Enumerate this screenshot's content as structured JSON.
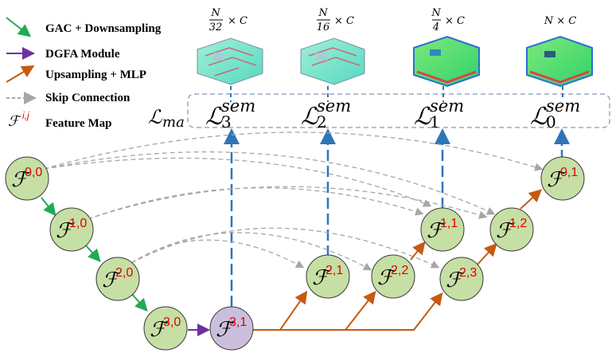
{
  "legend": {
    "items": [
      {
        "label": "GAC + Downsampling",
        "color": "#22aa55",
        "style": "arrow"
      },
      {
        "label": "DGFA Module",
        "color": "#7030a0",
        "style": "arrow"
      },
      {
        "label": "Upsampling + MLP",
        "color": "#c55a11",
        "style": "arrow"
      },
      {
        "label": "Skip Connection",
        "color": "#999999",
        "style": "dashed-arrow"
      },
      {
        "label": "Feature Map",
        "symbol_main": "ℱ",
        "symbol_sup": "i,j"
      }
    ]
  },
  "loss_box": {
    "outer_label_main": "ℒ",
    "outer_label_sub": "ma",
    "losses": [
      {
        "main": "ℒ",
        "sup": "sem",
        "sub": "3"
      },
      {
        "main": "ℒ",
        "sup": "sem",
        "sub": "2"
      },
      {
        "main": "ℒ",
        "sup": "sem",
        "sub": "1"
      },
      {
        "main": "ℒ",
        "sup": "sem",
        "sub": "0"
      }
    ]
  },
  "resolutions": [
    {
      "num": "N",
      "den": "32",
      "suffix": "× C"
    },
    {
      "num": "N",
      "den": "16",
      "suffix": "× C"
    },
    {
      "num": "N",
      "den": "4",
      "suffix": "× C"
    },
    {
      "label": "N × C"
    }
  ],
  "nodes": [
    {
      "id": "f00",
      "main": "ℱ",
      "sup": "0,0",
      "fill": "#c6dfa5"
    },
    {
      "id": "f10",
      "main": "ℱ",
      "sup": "1,0",
      "fill": "#c6dfa5"
    },
    {
      "id": "f20",
      "main": "ℱ",
      "sup": "2,0",
      "fill": "#c6dfa5"
    },
    {
      "id": "f30",
      "main": "ℱ",
      "sup": "3,0",
      "fill": "#c6dfa5"
    },
    {
      "id": "f31",
      "main": "ℱ",
      "sup": "3,1",
      "fill": "#cbbfdd"
    },
    {
      "id": "f21",
      "main": "ℱ",
      "sup": "2,1",
      "fill": "#c6dfa5"
    },
    {
      "id": "f22",
      "main": "ℱ",
      "sup": "2,2",
      "fill": "#c6dfa5"
    },
    {
      "id": "f23",
      "main": "ℱ",
      "sup": "2,3",
      "fill": "#c6dfa5"
    },
    {
      "id": "f11",
      "main": "ℱ",
      "sup": "1,1",
      "fill": "#c6dfa5"
    },
    {
      "id": "f12",
      "main": "ℱ",
      "sup": "1,2",
      "fill": "#c6dfa5"
    },
    {
      "id": "f01",
      "main": "ℱ",
      "sup": "0,1",
      "fill": "#c6dfa5"
    }
  ],
  "colors": {
    "gac": "#22aa55",
    "dgfa": "#7030a0",
    "upsample": "#c55a11",
    "skip": "#a6a6a6",
    "loss_link": "#2e75b6",
    "node_stroke": "#3a3a3a",
    "box_stroke": "#9aa5c4"
  }
}
